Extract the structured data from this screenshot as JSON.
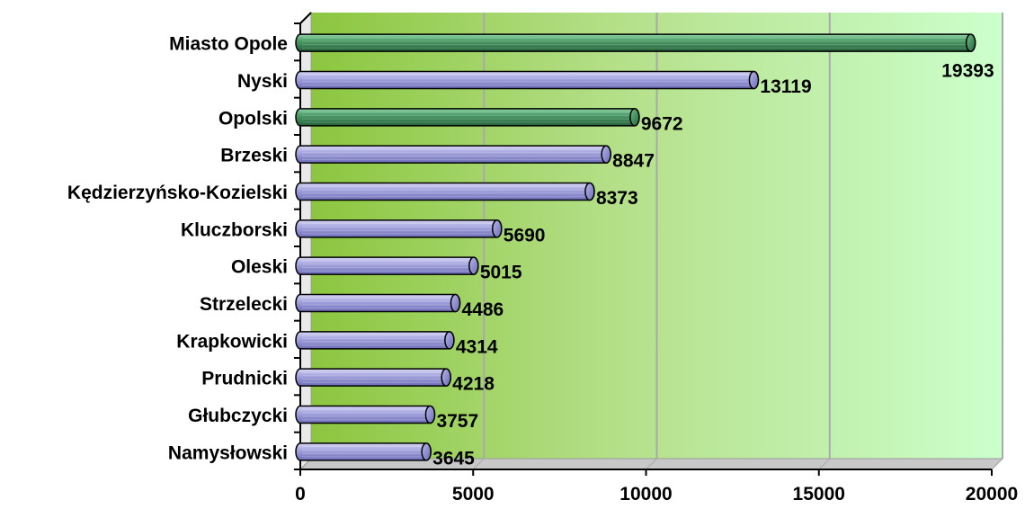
{
  "chart_data": {
    "type": "bar",
    "orientation": "horizontal",
    "title": "",
    "xlabel": "",
    "ylabel": "",
    "xlim": [
      0,
      20000
    ],
    "x_ticks": [
      0,
      5000,
      10000,
      15000,
      20000
    ],
    "grid": true,
    "categories": [
      "Miasto Opole",
      "Nyski",
      "Opolski",
      "Brzeski",
      "Kędzierzyńsko-Kozielski",
      "Kluczborski",
      "Oleski",
      "Strzelecki",
      "Krapkowicki",
      "Prudnicki",
      "Głubczycki",
      "Namysłowski"
    ],
    "values": [
      19393,
      13119,
      9672,
      8847,
      8373,
      5690,
      5015,
      4486,
      4314,
      4218,
      3757,
      3645
    ],
    "bar_colors": [
      "#3f8f5c",
      "#9a9ad8",
      "#3f8f5c",
      "#9a9ad8",
      "#9a9ad8",
      "#9a9ad8",
      "#9a9ad8",
      "#9a9ad8",
      "#9a9ad8",
      "#9a9ad8",
      "#9a9ad8",
      "#9a9ad8"
    ],
    "background_gradient": [
      "#8cc63f",
      "#ccffcc"
    ]
  }
}
